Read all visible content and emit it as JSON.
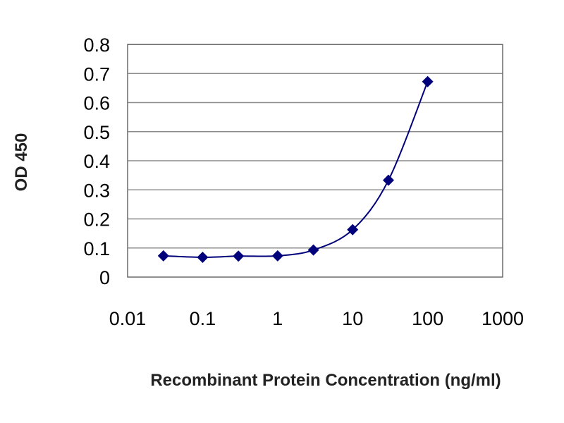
{
  "chart_data": {
    "type": "scatter",
    "title": "",
    "xlabel": "Recombinant Protein Concentration (ng/ml)",
    "ylabel": "OD 450",
    "x_scale": "log",
    "xlim": [
      0.01,
      1000
    ],
    "ylim": [
      0,
      0.8
    ],
    "x_ticks": [
      "0.01",
      "0.1",
      "1",
      "10",
      "100",
      "1000"
    ],
    "y_ticks": [
      "0",
      "0.1",
      "0.2",
      "0.3",
      "0.4",
      "0.5",
      "0.6",
      "0.7",
      "0.8"
    ],
    "grid": "horizontal",
    "legend": "none",
    "series": [
      {
        "x": [
          0.03,
          0.1,
          0.3,
          1,
          3,
          10,
          30,
          100
        ],
        "y": [
          0.073,
          0.068,
          0.072,
          0.073,
          0.093,
          0.163,
          0.333,
          0.672
        ],
        "marker": "diamond",
        "fitted_curve": true
      }
    ],
    "colors": {
      "series": "#00007a",
      "grid": "#8c8c8c",
      "frame": "#6a6a6a"
    }
  }
}
